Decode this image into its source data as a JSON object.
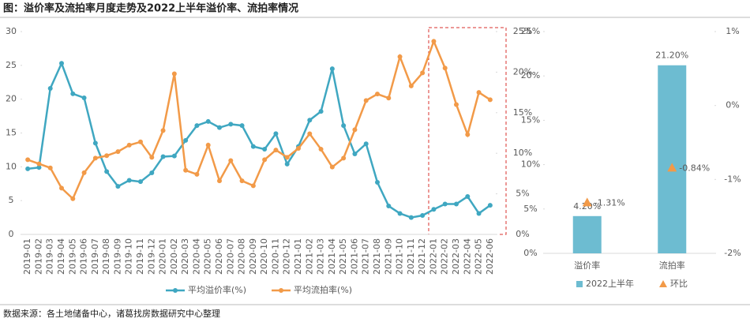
{
  "title": "图：溢价率及流拍率月度走势及2022上半年溢价率、流拍率情况",
  "source": "数据来源：各土地储备中心，诸葛找房数据研究中心整理",
  "chart_data": [
    {
      "type": "line",
      "categories": [
        "2019-01",
        "2019-02",
        "2019-03",
        "2019-04",
        "2019-05",
        "2019-06",
        "2019-07",
        "2019-08",
        "2019-09",
        "2019-10",
        "2019-11",
        "2019-12",
        "2020-01",
        "2020-02",
        "2020-03",
        "2020-04",
        "2020-05",
        "2020-06",
        "2020-07",
        "2020-08",
        "2020-09",
        "2020-10",
        "2020-11",
        "2020-12",
        "2021-01",
        "2021-02",
        "2021-03",
        "2021-04",
        "2021-05",
        "2021-06",
        "2021-07",
        "2021-08",
        "2021-09",
        "2021-10",
        "2021-11",
        "2021-12",
        "2022-01",
        "2022-02",
        "2022-03",
        "2022-04",
        "2022-05",
        "2022-06"
      ],
      "series": [
        {
          "name": "平均溢价率(%)",
          "color": "#3fa7c1",
          "values": [
            9.7,
            9.9,
            21.6,
            25.3,
            20.8,
            20.2,
            13.5,
            9.3,
            7.1,
            8.0,
            7.8,
            9.1,
            11.5,
            11.6,
            13.9,
            16.1,
            16.7,
            15.8,
            16.3,
            16.1,
            13.0,
            12.6,
            14.9,
            10.4,
            13.0,
            16.9,
            18.2,
            24.5,
            16.1,
            11.9,
            13.4,
            7.7,
            4.2,
            3.1,
            2.5,
            2.8,
            3.7,
            4.5,
            4.5,
            5.6,
            3.1,
            4.3
          ]
        },
        {
          "name": "平均流拍率(%)",
          "color": "#f29a48",
          "axis": "y2",
          "values": [
            9.2,
            8.7,
            8.2,
            5.7,
            4.4,
            7.6,
            9.4,
            9.7,
            10.2,
            11.0,
            11.4,
            9.5,
            12.8,
            19.8,
            7.9,
            7.4,
            11.0,
            6.6,
            9.1,
            6.6,
            6.0,
            9.2,
            10.4,
            9.5,
            10.6,
            12.4,
            10.5,
            8.3,
            9.4,
            12.9,
            16.5,
            17.3,
            16.8,
            21.9,
            18.3,
            19.9,
            23.8,
            20.5,
            16.0,
            12.3,
            17.5,
            16.6
          ]
        }
      ],
      "ylim": [
        0,
        30
      ],
      "yticks": [
        0,
        5,
        10,
        15,
        20,
        25,
        30
      ],
      "y2lim": [
        0,
        25
      ],
      "y2ticks": [
        {
          "value": 0,
          "label": "0%"
        },
        {
          "value": 5,
          "label": "5%"
        },
        {
          "value": 10,
          "label": "10%"
        },
        {
          "value": 15,
          "label": "15%"
        },
        {
          "value": 20,
          "label": "20%"
        },
        {
          "value": 25,
          "label": "25%"
        }
      ],
      "legend": "bottom"
    },
    {
      "type": "bar",
      "categories": [
        "溢价率",
        "流拍率"
      ],
      "series": [
        {
          "name": "2022上半年",
          "color": "#6dbcd1",
          "values": [
            4.2,
            21.2
          ],
          "value_labels": [
            "4.20%",
            "21.20%"
          ]
        },
        {
          "name": "环比",
          "color": "#f29a48",
          "type": "scatter",
          "marker": "triangle",
          "axis": "y2",
          "values": [
            -1.31,
            -0.84
          ],
          "value_labels": [
            "-1.31%",
            "-0.84%"
          ]
        }
      ],
      "ylim": [
        0,
        25
      ],
      "yticks": [
        {
          "value": 0,
          "label": "0%"
        },
        {
          "value": 5,
          "label": "5%"
        },
        {
          "value": 10,
          "label": "10%"
        },
        {
          "value": 15,
          "label": "15%"
        },
        {
          "value": 20,
          "label": "20%"
        },
        {
          "value": 25,
          "label": "25%"
        }
      ],
      "y2lim": [
        -2,
        1
      ],
      "y2ticks": [
        {
          "value": 1,
          "label": "1%"
        },
        {
          "value": 0,
          "label": "0%"
        },
        {
          "value": -1,
          "label": "-1%"
        },
        {
          "value": -2,
          "label": "-2%"
        }
      ],
      "legend": "bottom"
    }
  ]
}
